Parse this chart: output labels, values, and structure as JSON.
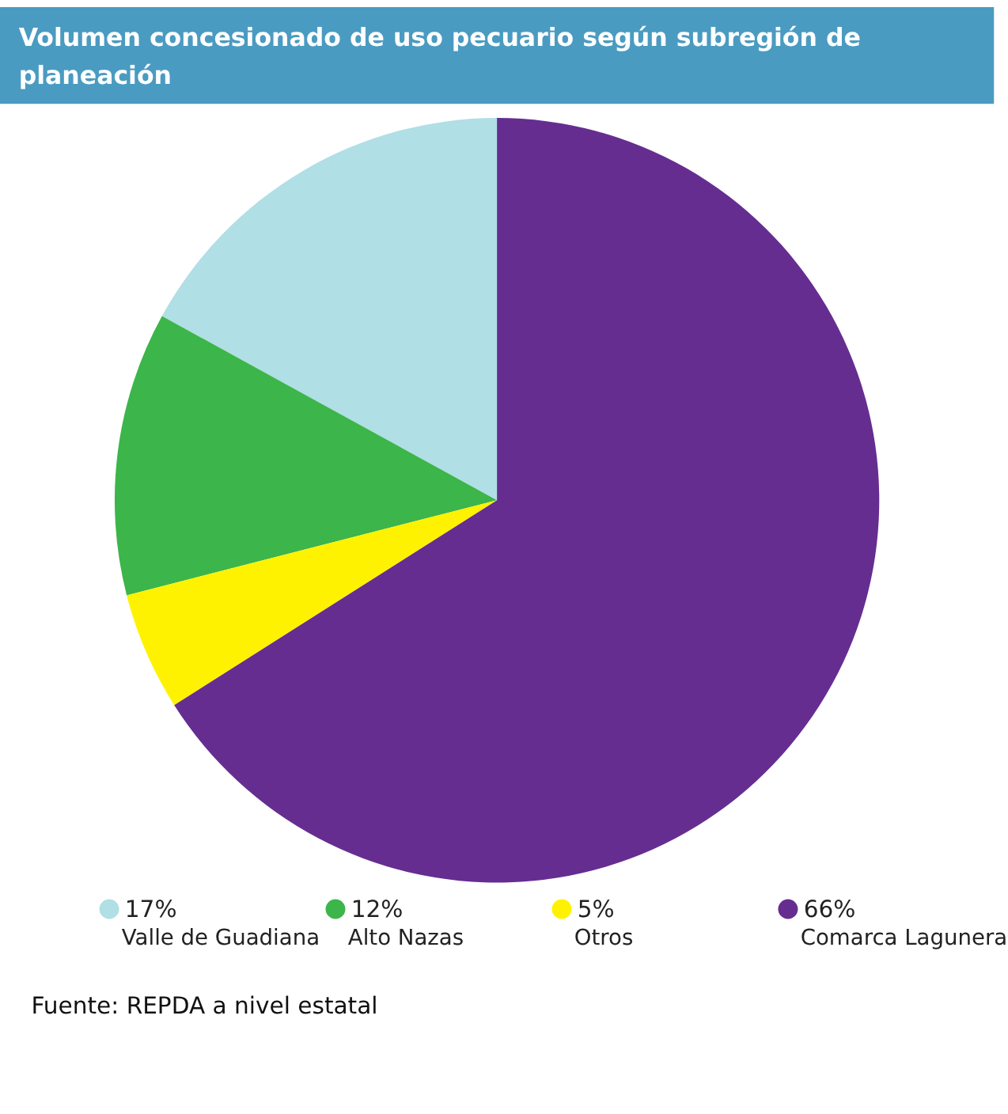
{
  "chart_data": {
    "type": "pie",
    "title": "Volumen concesionado de uso pecuario según subregión de planeación",
    "categories": [
      "Valle de Guadiana",
      "Alto Nazas",
      "Otros",
      "Comarca Lagunera"
    ],
    "values": [
      17,
      12,
      5,
      66
    ],
    "value_labels": [
      "17%",
      "12%",
      "5%",
      "66%"
    ],
    "colors": [
      "#b0dfe5",
      "#3cb54a",
      "#fff200",
      "#662d91"
    ],
    "legend": "bottom",
    "annotations": [
      "Fuente: REPDA a nivel estatal"
    ]
  }
}
